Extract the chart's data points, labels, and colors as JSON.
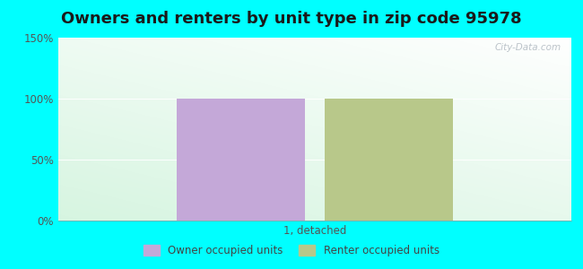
{
  "title": "Owners and renters by unit type in zip code 95978",
  "categories": [
    "1, detached"
  ],
  "owner_values": [
    100
  ],
  "renter_values": [
    100
  ],
  "owner_color": "#c4a8d8",
  "renter_color": "#b8c88a",
  "ylim": [
    0,
    150
  ],
  "yticks": [
    0,
    50,
    100,
    150
  ],
  "ytick_labels": [
    "0%",
    "50%",
    "100%",
    "150%"
  ],
  "bar_width": 0.25,
  "title_fontsize": 13,
  "legend_label_owner": "Owner occupied units",
  "legend_label_renter": "Renter occupied units",
  "watermark": "City-Data.com",
  "figure_bg": "#00ffff",
  "grad_colors": [
    "#c8edcc",
    "#e8f7e8",
    "#edf8f4",
    "#f5fdf8",
    "#ffffff"
  ],
  "grid_color": "#e0ece0",
  "tick_color": "#555555"
}
